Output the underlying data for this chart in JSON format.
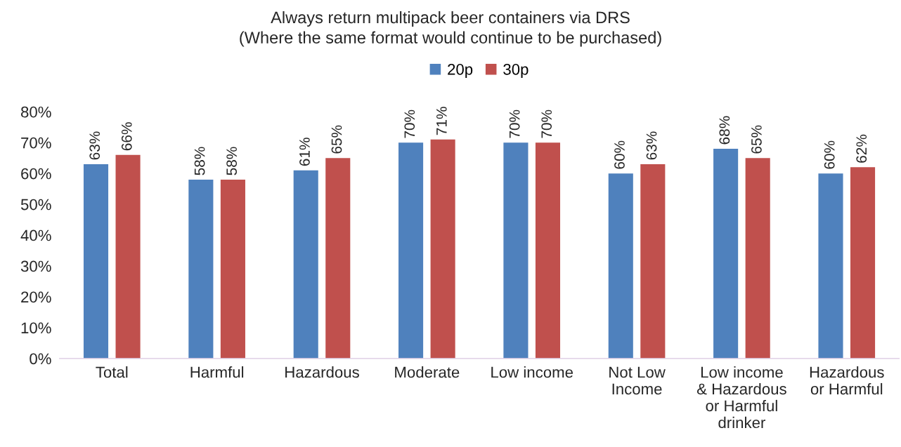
{
  "chart_data": {
    "type": "bar",
    "title": "Always return multipack beer containers via DRS",
    "subtitle": "(Where the same format would continue to be purchased)",
    "categories": [
      "Total",
      "Harmful",
      "Hazardous",
      "Moderate",
      "Low income",
      "Not Low\nIncome",
      "Low income\n& Hazardous\nor Harmful\ndrinker",
      "Hazardous\nor Harmful"
    ],
    "series": [
      {
        "name": "20p",
        "color": "#4f81bd",
        "values": [
          63,
          58,
          61,
          70,
          70,
          60,
          68,
          60
        ],
        "value_labels": [
          "63%",
          "58%",
          "61%",
          "70%",
          "70%",
          "60%",
          "68%",
          "60%"
        ]
      },
      {
        "name": "30p",
        "color": "#c0504d",
        "values": [
          66,
          58,
          65,
          71,
          70,
          63,
          65,
          62
        ],
        "value_labels": [
          "66%",
          "58%",
          "65%",
          "71%",
          "70%",
          "63%",
          "65%",
          "62%"
        ]
      }
    ],
    "ylim": [
      0,
      80
    ],
    "yticks": [
      {
        "value": 0,
        "label": "0%"
      },
      {
        "value": 10,
        "label": "10%"
      },
      {
        "value": 20,
        "label": "20%"
      },
      {
        "value": 30,
        "label": "30%"
      },
      {
        "value": 40,
        "label": "40%"
      },
      {
        "value": 50,
        "label": "50%"
      },
      {
        "value": 60,
        "label": "60%"
      },
      {
        "value": 70,
        "label": "70%"
      },
      {
        "value": 80,
        "label": "80%"
      }
    ],
    "legend": "top",
    "grid": false
  }
}
